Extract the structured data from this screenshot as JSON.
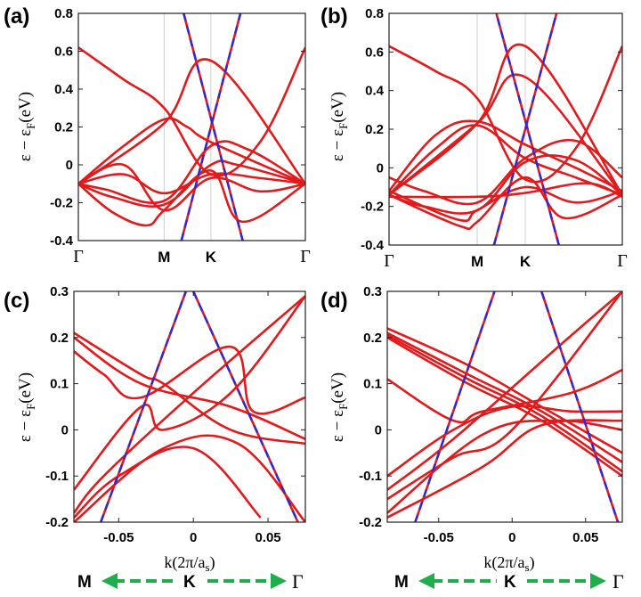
{
  "colors": {
    "band": "#e31a1c",
    "dirac": "#2a2ad8",
    "arrow": "#1fae4b"
  },
  "chart_data": [
    {
      "panel": "(a)",
      "type": "line",
      "ylabel_main": "ε − ε",
      "ylabel_sub": "F",
      "ylabel_unit": "(eV)",
      "ylim": [
        -0.4,
        0.8
      ],
      "yticks": [
        "0.8",
        "0.6",
        "0.4",
        "0.2",
        "0",
        "-0.2",
        "-0.4"
      ],
      "path_labels": [
        {
          "label": "Γ",
          "pos": 0
        },
        {
          "label": "M",
          "pos": 0.378
        },
        {
          "label": "K",
          "pos": 0.584
        },
        {
          "label": "Γ",
          "pos": 1
        }
      ],
      "bands": [
        {
          "name": "b1",
          "x": [
            0,
            0.378,
            0.584,
            1
          ],
          "y": [
            -0.1,
            0.22,
            0.55,
            -0.1
          ]
        },
        {
          "name": "b2",
          "x": [
            0,
            0.2,
            0.378,
            0.584,
            0.8,
            1
          ],
          "y": [
            0.62,
            0.45,
            0.3,
            -0.05,
            0.12,
            0.62
          ]
        },
        {
          "name": "b3",
          "x": [
            0,
            0.2,
            0.378,
            0.48,
            0.584,
            1
          ],
          "y": [
            -0.1,
            0.1,
            0.24,
            0.2,
            0.12,
            -0.1
          ]
        },
        {
          "name": "b4",
          "x": [
            0,
            0.12,
            0.378,
            0.584,
            0.75,
            1
          ],
          "y": [
            -0.1,
            -0.13,
            -0.19,
            0.1,
            0.08,
            -0.1
          ]
        },
        {
          "name": "b5",
          "x": [
            0,
            0.15,
            0.378,
            0.584,
            0.7,
            1
          ],
          "y": [
            -0.1,
            -0.17,
            -0.21,
            0.0,
            0.0,
            -0.1
          ]
        },
        {
          "name": "b6",
          "x": [
            0,
            0.15,
            0.3,
            0.378,
            0.584,
            0.72,
            1
          ],
          "y": [
            -0.1,
            -0.25,
            -0.32,
            -0.24,
            -0.03,
            -0.3,
            -0.1
          ]
        },
        {
          "name": "b7",
          "x": [
            0,
            0.2,
            0.378,
            0.584,
            0.8,
            1
          ],
          "y": [
            -0.1,
            0.0,
            -0.24,
            -0.07,
            -0.14,
            -0.1
          ]
        },
        {
          "name": "b8",
          "x": [
            0,
            0.2,
            0.378,
            0.584,
            0.8,
            1
          ],
          "y": [
            -0.1,
            -0.05,
            -0.15,
            -0.05,
            -0.07,
            -0.1
          ]
        }
      ],
      "dirac": [
        {
          "x": [
            0.454,
            0.714
          ],
          "y": [
            -0.4,
            0.8
          ]
        },
        {
          "x": [
            0.724,
            0.464
          ],
          "y": [
            -0.4,
            0.8
          ]
        }
      ]
    },
    {
      "panel": "(b)",
      "type": "line",
      "ylabel_main": "ε − ε",
      "ylabel_sub": "F",
      "ylabel_unit": "(eV)",
      "ylim": [
        -0.4,
        0.8
      ],
      "yticks": [
        "0.8",
        "0.6",
        "0.4",
        "0.2",
        "0",
        "-0.2",
        "-0.4"
      ],
      "path_labels": [
        {
          "label": "Γ",
          "pos": 0
        },
        {
          "label": "M",
          "pos": 0.378
        },
        {
          "label": "K",
          "pos": 0.584
        },
        {
          "label": "Γ",
          "pos": 1
        }
      ],
      "bands": [
        {
          "name": "b1",
          "x": [
            0,
            0.378,
            0.584,
            1
          ],
          "y": [
            -0.14,
            0.23,
            0.63,
            -0.14
          ]
        },
        {
          "name": "b2",
          "x": [
            0,
            0.378,
            0.584,
            1
          ],
          "y": [
            -0.14,
            0.23,
            0.47,
            -0.14
          ]
        },
        {
          "name": "b3",
          "x": [
            0,
            0.2,
            0.378,
            0.584,
            0.8,
            1
          ],
          "y": [
            0.63,
            0.5,
            0.36,
            -0.06,
            0.1,
            0.63
          ]
        },
        {
          "name": "b4",
          "x": [
            0,
            0.2,
            0.378,
            0.584,
            0.8,
            1
          ],
          "y": [
            -0.12,
            0.17,
            0.24,
            0.12,
            0.0,
            -0.12
          ]
        },
        {
          "name": "b5",
          "x": [
            0,
            0.2,
            0.378,
            0.584,
            0.8,
            1
          ],
          "y": [
            -0.14,
            0.1,
            0.22,
            0.05,
            -0.05,
            -0.14
          ]
        },
        {
          "name": "b6",
          "x": [
            0,
            0.15,
            0.378,
            0.584,
            0.8,
            1
          ],
          "y": [
            -0.05,
            -0.12,
            -0.18,
            0.05,
            0.14,
            -0.05
          ]
        },
        {
          "name": "b7",
          "x": [
            0,
            0.15,
            0.378,
            0.584,
            0.8,
            1
          ],
          "y": [
            -0.14,
            -0.2,
            -0.22,
            0.03,
            0.04,
            -0.14
          ]
        },
        {
          "name": "b8",
          "x": [
            0,
            0.3,
            0.378,
            0.584,
            0.75,
            1
          ],
          "y": [
            -0.14,
            -0.3,
            -0.28,
            -0.05,
            -0.26,
            -0.14
          ]
        },
        {
          "name": "b9",
          "x": [
            0,
            0.3,
            0.378,
            0.584,
            0.8,
            1
          ],
          "y": [
            -0.12,
            -0.27,
            -0.22,
            -0.1,
            -0.18,
            -0.12
          ]
        },
        {
          "name": "b10",
          "x": [
            0,
            0.378,
            0.584,
            0.85,
            1
          ],
          "y": [
            -0.15,
            -0.15,
            -0.13,
            -0.08,
            -0.15
          ]
        }
      ],
      "dirac": [
        {
          "x": [
            0.45,
            0.718
          ],
          "y": [
            -0.4,
            0.8
          ]
        },
        {
          "x": [
            0.728,
            0.46
          ],
          "y": [
            -0.4,
            0.8
          ]
        }
      ]
    },
    {
      "panel": "(c)",
      "type": "line",
      "ylabel_main": "ε − ε",
      "ylabel_sub": "F",
      "ylabel_unit": "(eV)",
      "xlabel_main": "k(2π/a",
      "xlabel_sub": "s",
      "xlabel_end": ")",
      "xlim": [
        -0.08,
        0.075
      ],
      "ylim": [
        -0.2,
        0.3
      ],
      "xticks": [
        "-0.05",
        "0",
        "0.05"
      ],
      "xtick_values": [
        -0.05,
        0,
        0.05
      ],
      "yticks": [
        "0.3",
        "0.2",
        "0.1",
        "0",
        "-0.1",
        "-0.2"
      ],
      "bands": [
        {
          "name": "b1",
          "x": [
            -0.08,
            -0.035,
            -0.02,
            0.025,
            0.075
          ],
          "y": [
            0.21,
            0.12,
            0.1,
            0.0,
            -0.03
          ]
        },
        {
          "name": "b2",
          "x": [
            -0.08,
            -0.035,
            0.025,
            0.075
          ],
          "y": [
            0.2,
            0.1,
            0.05,
            -0.02
          ]
        },
        {
          "name": "b3",
          "x": [
            -0.08,
            -0.06,
            -0.035,
            0.025,
            0.04,
            0.075
          ],
          "y": [
            0.17,
            0.12,
            0.07,
            0.18,
            0.04,
            0.07
          ]
        },
        {
          "name": "b4",
          "x": [
            -0.08,
            -0.035,
            -0.02,
            0.025,
            0.075
          ],
          "y": [
            -0.13,
            0.05,
            0.0,
            0.08,
            0.29
          ]
        },
        {
          "name": "b5",
          "x": [
            -0.08,
            -0.06,
            0.0,
            0.075
          ],
          "y": [
            -0.18,
            -0.1,
            0.08,
            0.29
          ]
        },
        {
          "name": "b6",
          "x": [
            -0.08,
            -0.05,
            0.0,
            0.045
          ],
          "y": [
            -0.19,
            -0.1,
            -0.04,
            -0.19
          ]
        },
        {
          "name": "b7",
          "x": [
            -0.08,
            -0.02,
            0.03,
            0.075
          ],
          "y": [
            -0.2,
            -0.04,
            -0.03,
            -0.2
          ]
        }
      ],
      "dirac": [
        {
          "x": [
            -0.062,
            -0.005
          ],
          "y": [
            -0.2,
            0.3
          ]
        },
        {
          "x": [
            0.0,
            0.07
          ],
          "y": [
            0.3,
            -0.2
          ]
        }
      ],
      "direction": {
        "left": "M",
        "center": "K",
        "right": "Γ"
      }
    },
    {
      "panel": "(d)",
      "type": "line",
      "ylabel_main": "ε − ε",
      "ylabel_sub": "F",
      "ylabel_unit": "(eV)",
      "xlabel_main": "k(2π/a",
      "xlabel_sub": "s",
      "xlabel_end": ")",
      "xlim": [
        -0.085,
        0.075
      ],
      "ylim": [
        -0.2,
        0.3
      ],
      "xticks": [
        "-0.05",
        "0",
        "0.05"
      ],
      "xtick_values": [
        -0.05,
        0,
        0.05
      ],
      "yticks": [
        "0.3",
        "0.2",
        "0.1",
        "0",
        "-0.1",
        "-0.2"
      ],
      "bands": [
        {
          "name": "b1",
          "x": [
            -0.085,
            -0.03,
            0.02,
            0.075
          ],
          "y": [
            0.22,
            0.14,
            0.05,
            -0.05
          ]
        },
        {
          "name": "b2",
          "x": [
            -0.085,
            -0.03,
            0.02,
            0.075
          ],
          "y": [
            0.21,
            0.12,
            0.04,
            -0.07
          ]
        },
        {
          "name": "b3",
          "x": [
            -0.085,
            -0.03,
            0.02,
            0.075
          ],
          "y": [
            0.205,
            0.11,
            0.03,
            -0.09
          ]
        },
        {
          "name": "b4",
          "x": [
            -0.085,
            -0.03,
            0.02,
            0.075
          ],
          "y": [
            0.2,
            0.1,
            0.02,
            -0.1
          ]
        },
        {
          "name": "b5",
          "x": [
            -0.085,
            -0.04,
            -0.02,
            0.04,
            0.075
          ],
          "y": [
            0.11,
            0.02,
            0.04,
            0.08,
            0.13
          ]
        },
        {
          "name": "b6",
          "x": [
            -0.085,
            -0.04,
            0.0,
            0.04,
            0.075
          ],
          "y": [
            -0.1,
            0.0,
            0.05,
            0.04,
            0.04
          ]
        },
        {
          "name": "b7",
          "x": [
            -0.085,
            -0.04,
            0.035,
            0.075
          ],
          "y": [
            -0.13,
            -0.02,
            0.19,
            0.3
          ]
        },
        {
          "name": "b8",
          "x": [
            -0.085,
            -0.04,
            0.0,
            0.075
          ],
          "y": [
            -0.15,
            -0.06,
            0.0,
            0.3
          ]
        },
        {
          "name": "b9",
          "x": [
            -0.085,
            -0.02,
            0.03,
            0.075
          ],
          "y": [
            -0.18,
            -0.01,
            0.02,
            0.0
          ]
        },
        {
          "name": "b10",
          "x": [
            -0.085,
            -0.02,
            0.02,
            0.075
          ],
          "y": [
            -0.19,
            -0.08,
            0.01,
            0.02
          ]
        }
      ],
      "dirac": [
        {
          "x": [
            -0.066,
            -0.012
          ],
          "y": [
            -0.2,
            0.3
          ]
        },
        {
          "x": [
            0.02,
            0.072
          ],
          "y": [
            0.3,
            -0.2
          ]
        }
      ],
      "direction": {
        "left": "M",
        "center": "K",
        "right": "Γ"
      }
    }
  ]
}
